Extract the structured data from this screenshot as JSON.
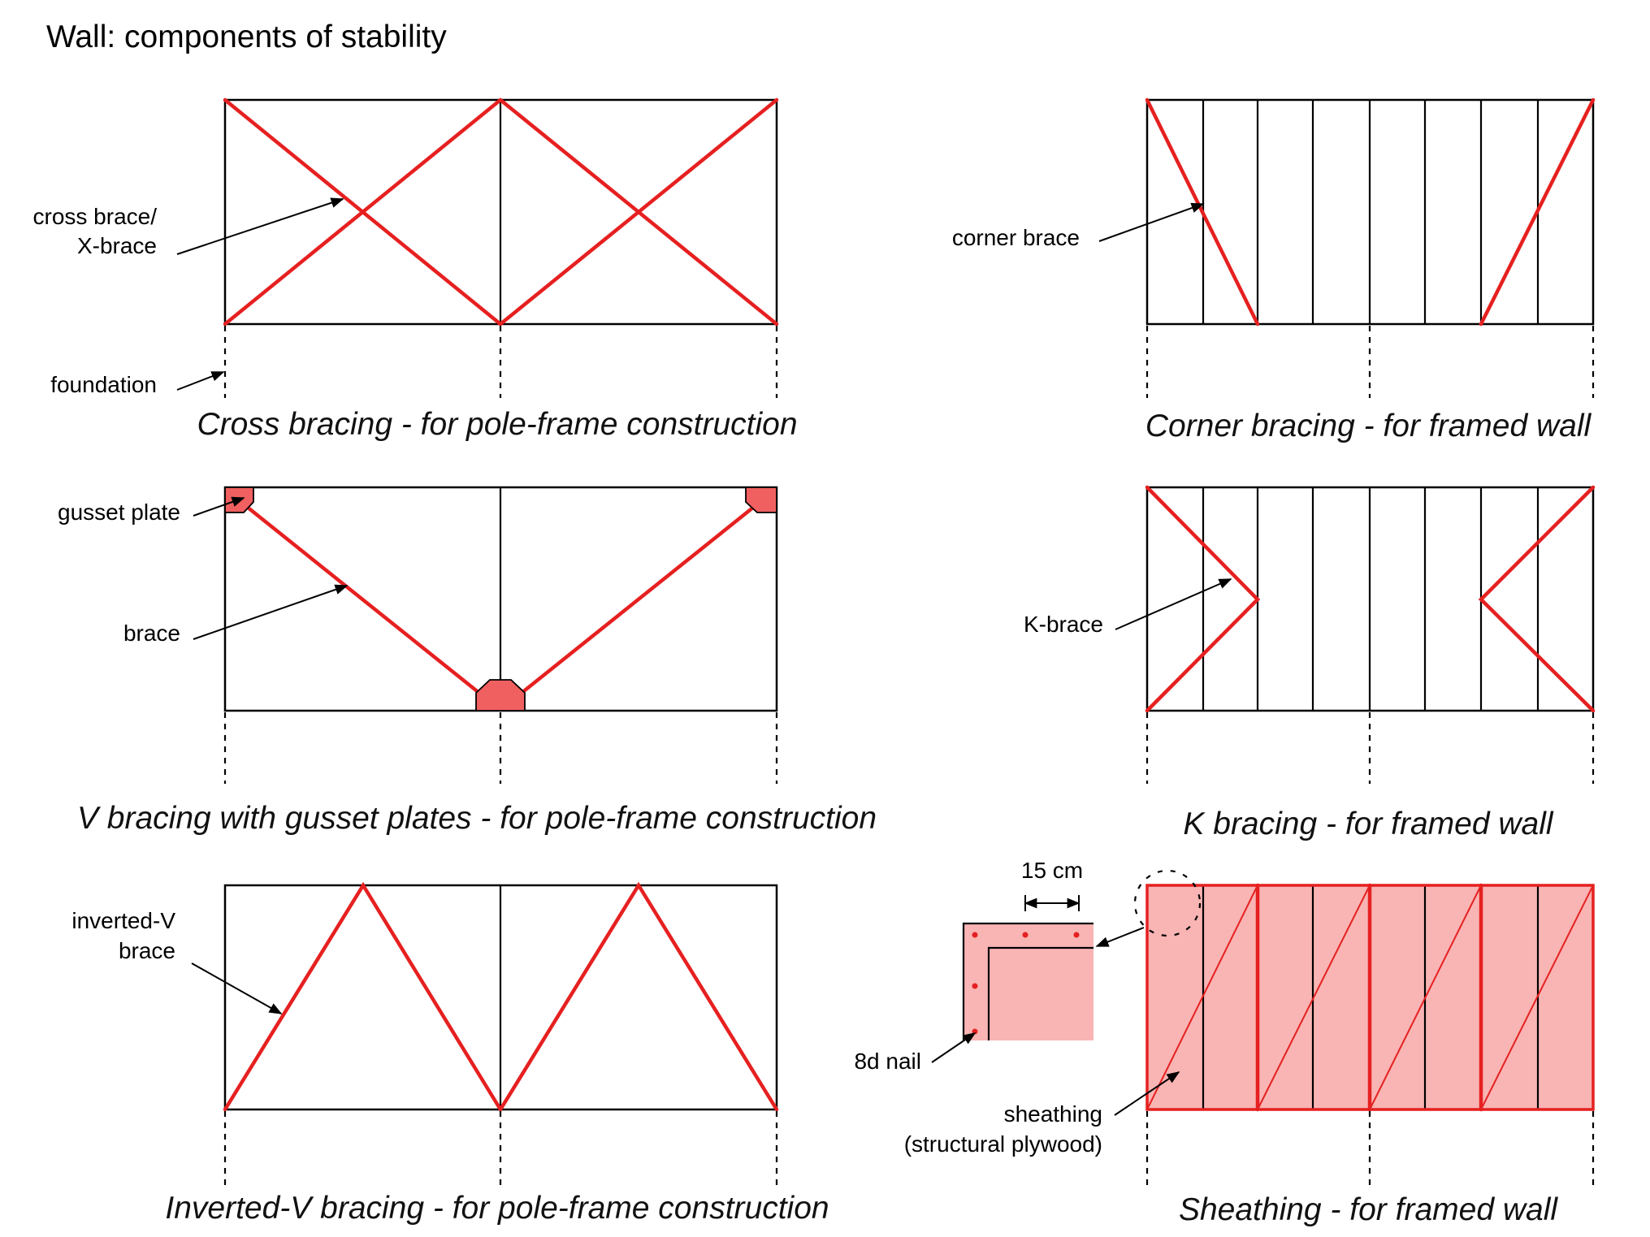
{
  "title": "Wall: components of stability",
  "panels": {
    "cross": {
      "caption": "Cross bracing - for pole-frame construction",
      "label_brace_line1": "cross brace/",
      "label_brace_line2": "X-brace",
      "label_foundation": "foundation"
    },
    "corner": {
      "caption": "Corner bracing - for framed wall",
      "label_brace": "corner brace"
    },
    "v": {
      "caption": "V bracing with gusset plates - for pole-frame construction",
      "label_gusset": "gusset plate",
      "label_brace": "brace"
    },
    "k": {
      "caption": "K bracing - for framed wall",
      "label_brace": "K-brace"
    },
    "inverted_v": {
      "caption": "Inverted-V bracing - for pole-frame construction",
      "label_brace_line1": "inverted-V",
      "label_brace_line2": "brace"
    },
    "sheathing": {
      "caption": "Sheathing - for framed wall",
      "label_spacing": "15 cm",
      "label_nail": "8d nail",
      "label_sheathing_line1": "sheathing",
      "label_sheathing_line2": "(structural plywood)"
    }
  },
  "colors": {
    "brace": "#e62020",
    "sheathing_fill": "#f9b4b4",
    "gusset_fill": "#f06060",
    "line": "#000000"
  }
}
